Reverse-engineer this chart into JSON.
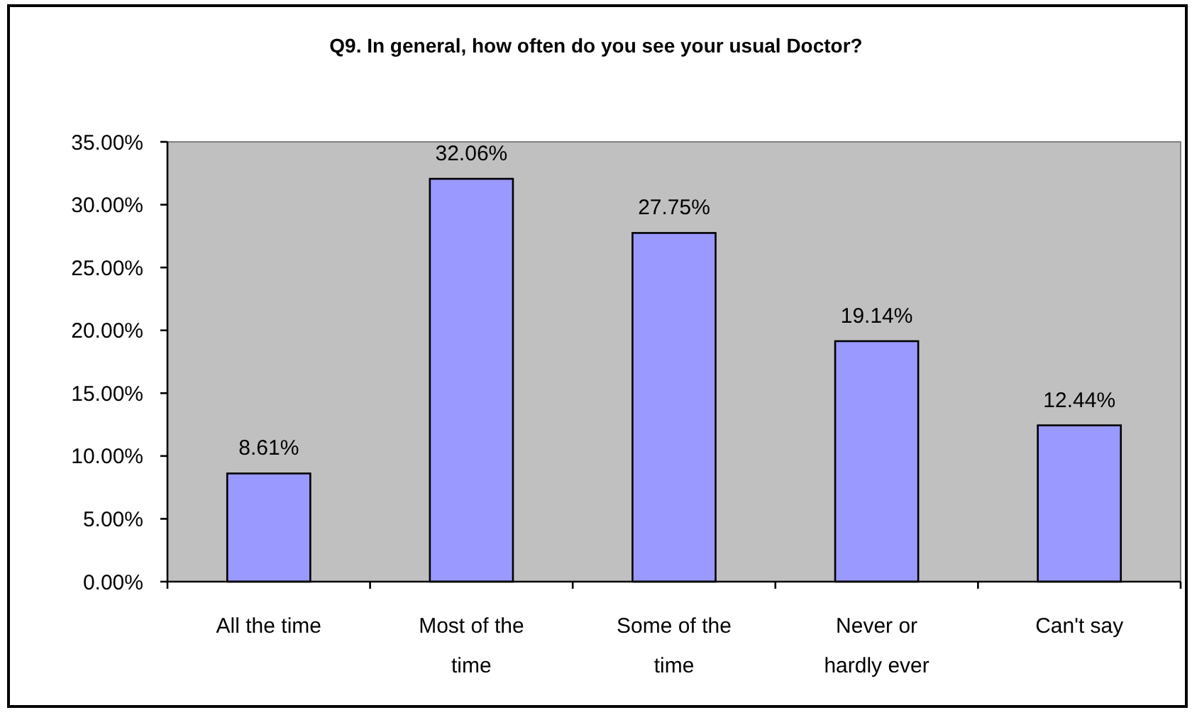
{
  "chart_data": {
    "type": "bar",
    "title": "Q9. In general, how often do you see your usual Doctor?",
    "categories": [
      "All the time",
      "Most of the time",
      "Some of the time",
      "Never or hardly ever",
      "Can't say"
    ],
    "values": [
      8.61,
      32.06,
      27.75,
      19.14,
      12.44
    ],
    "value_labels": [
      "8.61%",
      "32.06%",
      "27.75%",
      "19.14%",
      "12.44%"
    ],
    "color": "#9999ff",
    "ylim": [
      0,
      35
    ],
    "yticks": [
      {
        "value": 0,
        "label": "0.00%"
      },
      {
        "value": 5,
        "label": "5.00%"
      },
      {
        "value": 10,
        "label": "10.00%"
      },
      {
        "value": 15,
        "label": "15.00%"
      },
      {
        "value": 20,
        "label": "20.00%"
      },
      {
        "value": 25,
        "label": "25.00%"
      },
      {
        "value": 30,
        "label": "30.00%"
      },
      {
        "value": 35,
        "label": "35.00%"
      }
    ]
  }
}
